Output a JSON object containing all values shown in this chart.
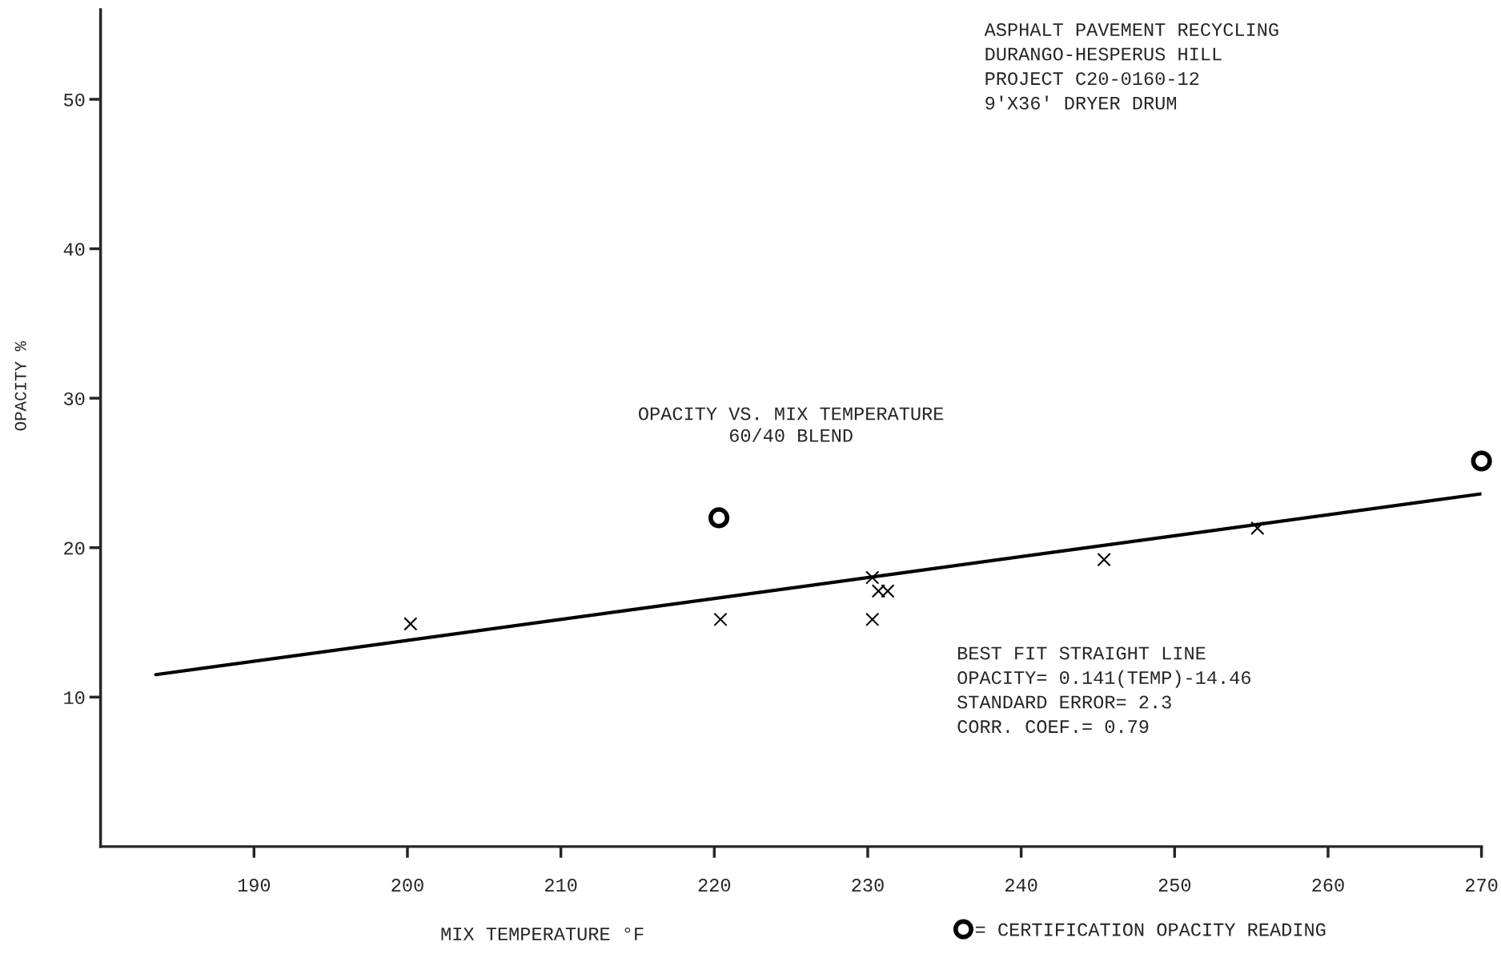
{
  "chart_data": {
    "type": "scatter",
    "title": "OPACITY VS. MIX TEMPERATURE",
    "subtitle": "60/40 BLEND",
    "xlabel": "MIX TEMPERATURE °F",
    "ylabel": "OPACITY %",
    "xlim": [
      180,
      270
    ],
    "ylim": [
      0,
      56
    ],
    "xticks": [
      190,
      200,
      210,
      220,
      230,
      240,
      250,
      260,
      270
    ],
    "yticks": [
      10,
      20,
      30,
      40,
      50
    ],
    "grid": false,
    "legend": "bottom right",
    "series": [
      {
        "marker": "cross",
        "color": "#000000",
        "x": [
          200.2,
          220.4,
          230.3,
          230.3,
          230.7,
          231.3,
          245.4,
          255.4
        ],
        "values": [
          14.9,
          15.2,
          18.0,
          15.2,
          17.1,
          17.1,
          19.2,
          21.3
        ]
      },
      {
        "marker": "circle",
        "name": "= CERTIFICATION OPACITY READING",
        "color": "#000000",
        "x": [
          220.3,
          270
        ],
        "values": [
          22.0,
          25.8
        ]
      },
      {
        "type": "line",
        "line_style": "solid",
        "color": "#000000",
        "x": [
          183.6,
          270
        ],
        "values": [
          11.5,
          23.6
        ]
      }
    ],
    "annotations": [
      "ASPHALT PAVEMENT RECYCLING\nDURANGO-HESPERUS HILL\nPROJECT C20-0160-12\n9'X36' DRYER DRUM",
      "BEST FIT STRAIGHT LINE\nOPACITY= 0.141(TEMP)-14.46\nSTANDARD ERROR= 2.3\nCORR. COEF.= 0.79"
    ]
  }
}
